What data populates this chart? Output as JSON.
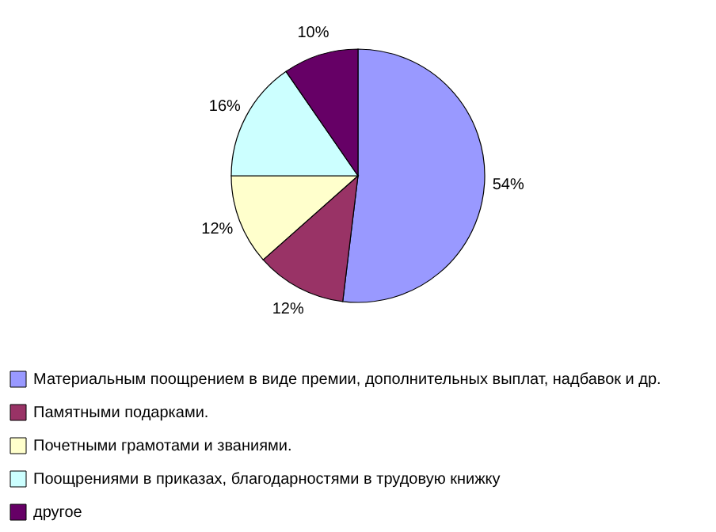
{
  "chart_data": {
    "type": "pie",
    "categories": [
      "Материальным поощрением в виде премии, дополнительных выплат, надбавок и др.",
      "Памятными подарками.",
      "Почетными грамотами и званиями.",
      "Поощрениями в приказах, благодарностями в трудовую книжку",
      "другое"
    ],
    "values": [
      54,
      12,
      12,
      16,
      10
    ],
    "colors": [
      "#9999ff",
      "#993366",
      "#ffffcc",
      "#ccffff",
      "#660066"
    ],
    "value_labels": [
      "54%",
      "12%",
      "12%",
      "16%",
      "10%"
    ],
    "legend": "bottom"
  }
}
